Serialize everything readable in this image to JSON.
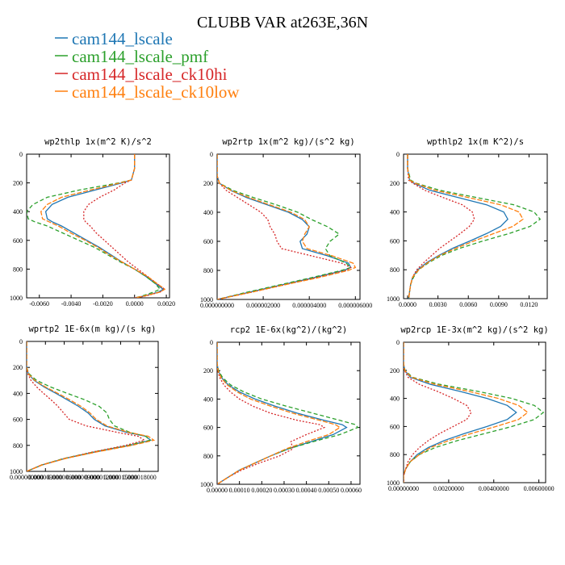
{
  "figure": {
    "title": "CLUBB VAR at263E,36N",
    "legend": [
      {
        "label": "cam144_lscale",
        "color": "#1f77b4"
      },
      {
        "label": "cam144_lscale_pmf",
        "color": "#2ca02c"
      },
      {
        "label": "cam144_lscale_ck10hi",
        "color": "#d62728"
      },
      {
        "label": "cam144_lscale_ck10low",
        "color": "#ff7f0e"
      }
    ]
  },
  "chart_data": [
    {
      "type": "line",
      "title": "wp2thlp  1x(m^2 K)/s^2",
      "xlim": [
        -0.0068,
        0.0022
      ],
      "ylim": [
        1000,
        0
      ],
      "xticks": [
        -0.006,
        -0.004,
        -0.002,
        0,
        0.002
      ],
      "xtick_labels": [
        "-0.0060",
        "-0.0040",
        "-0.0020",
        "0.0000",
        "0.0020"
      ],
      "yticks": [
        0,
        200,
        400,
        600,
        800,
        1000
      ],
      "ytick_labels": [
        "0",
        "200",
        "400",
        "600",
        "800",
        "1000"
      ],
      "y_levels": [
        0,
        100,
        180,
        200,
        250,
        300,
        350,
        400,
        450,
        470,
        500,
        550,
        600,
        650,
        700,
        750,
        800,
        850,
        900,
        940,
        960,
        990,
        1000
      ],
      "series": [
        {
          "label": "cam144_lscale",
          "color": "#1f77b4",
          "dash": "",
          "x": [
            0,
            0,
            -0.0002,
            -0.0008,
            -0.0025,
            -0.0042,
            -0.0052,
            -0.0056,
            -0.0055,
            -0.0052,
            -0.0046,
            -0.0038,
            -0.003,
            -0.0022,
            -0.0015,
            -0.0008,
            0,
            0.0007,
            0.0013,
            0.0018,
            0.0015,
            0.0005,
            0
          ]
        },
        {
          "label": "cam144_lscale_pmf",
          "color": "#2ca02c",
          "dash": "5,3",
          "x": [
            0,
            0,
            -0.0002,
            -0.001,
            -0.0035,
            -0.0055,
            -0.0064,
            -0.0068,
            -0.0067,
            -0.0063,
            -0.0055,
            -0.0045,
            -0.0035,
            -0.0025,
            -0.0017,
            -0.0009,
            0,
            0.0007,
            0.0013,
            0.0016,
            0.0012,
            0.0004,
            0
          ]
        },
        {
          "label": "cam144_lscale_ck10hi",
          "color": "#d62728",
          "dash": "2,2",
          "x": [
            0,
            0,
            -0.0002,
            -0.0006,
            -0.0013,
            -0.0022,
            -0.0029,
            -0.0032,
            -0.0032,
            -0.0031,
            -0.0028,
            -0.0024,
            -0.0019,
            -0.0014,
            -0.0009,
            -0.0004,
            0.0002,
            0.0008,
            0.0014,
            0.0019,
            0.0016,
            0.0006,
            0
          ]
        },
        {
          "label": "cam144_lscale_ck10low",
          "color": "#ff7f0e",
          "dash": "6,2",
          "x": [
            0,
            0,
            -0.0002,
            -0.0009,
            -0.0028,
            -0.0046,
            -0.0055,
            -0.0059,
            -0.0058,
            -0.0054,
            -0.0048,
            -0.004,
            -0.0031,
            -0.0023,
            -0.0016,
            -0.0008,
            0,
            0.0008,
            0.0014,
            0.0019,
            0.0016,
            0.0005,
            0
          ]
        }
      ]
    },
    {
      "type": "line",
      "title": "wp2rtp  1x(m^2 kg)/(s^2 kg)",
      "xlim": [
        0,
        6.2e-06
      ],
      "ylim": [
        1000,
        0
      ],
      "xticks": [
        0,
        2e-06,
        4e-06,
        6e-06
      ],
      "xtick_labels": [
        "0.000000000",
        "0.000002000",
        "0.000004000",
        "0.000006000"
      ],
      "yticks": [
        0,
        200,
        400,
        600,
        800,
        1000
      ],
      "ytick_labels": [
        "0",
        "200",
        "400",
        "600",
        "800",
        "1000"
      ],
      "y_levels": [
        0,
        150,
        200,
        250,
        300,
        350,
        400,
        450,
        500,
        550,
        600,
        650,
        700,
        750,
        780,
        800,
        850,
        900,
        950,
        1000
      ],
      "series": [
        {
          "label": "cam144_lscale",
          "color": "#1f77b4",
          "dash": "",
          "x": [
            0,
            0,
            1e-07,
            6e-07,
            1.3e-06,
            2.2e-06,
            3.1e-06,
            3.7e-06,
            4e-06,
            3.9e-06,
            3.6e-06,
            3.7e-06,
            4.8e-06,
            5.7e-06,
            5.8e-06,
            5.5e-06,
            4.2e-06,
            2.8e-06,
            1.4e-06,
            0
          ]
        },
        {
          "label": "cam144_lscale_pmf",
          "color": "#2ca02c",
          "dash": "5,3",
          "x": [
            0,
            0,
            1e-07,
            7e-07,
            1.6e-06,
            2.6e-06,
            3.5e-06,
            4.1e-06,
            4.8e-06,
            5.3e-06,
            4.9e-06,
            4.7e-06,
            4.9e-06,
            5.6e-06,
            5.8e-06,
            5.4e-06,
            4.1e-06,
            2.7e-06,
            1.3e-06,
            0
          ]
        },
        {
          "label": "cam144_lscale_ck10hi",
          "color": "#d62728",
          "dash": "2,2",
          "x": [
            0,
            0,
            1e-07,
            4e-07,
            9e-07,
            1.4e-06,
            1.9e-06,
            2.2e-06,
            2.3e-06,
            2.5e-06,
            2.6e-06,
            2.8e-06,
            4.1e-06,
            5.4e-06,
            5.8e-06,
            5.6e-06,
            4.3e-06,
            2.9e-06,
            1.5e-06,
            0
          ]
        },
        {
          "label": "cam144_lscale_ck10low",
          "color": "#ff7f0e",
          "dash": "6,2",
          "x": [
            0,
            0,
            1e-07,
            6e-07,
            1.4e-06,
            2.3e-06,
            3.2e-06,
            3.8e-06,
            4e-06,
            3.8e-06,
            3.7e-06,
            3.9e-06,
            5e-06,
            5.9e-06,
            6e-06,
            5.7e-06,
            4.4e-06,
            2.9e-06,
            1.5e-06,
            0
          ]
        }
      ]
    },
    {
      "type": "line",
      "title": "wpthlp2  1x(m K^2)/s",
      "xlim": [
        -0.0004,
        0.0138
      ],
      "ylim": [
        1000,
        0
      ],
      "xticks": [
        0,
        0.003,
        0.006,
        0.009,
        0.012
      ],
      "xtick_labels": [
        "0.0000",
        "0.0030",
        "0.0060",
        "0.0090",
        "0.0120"
      ],
      "yticks": [
        0,
        200,
        400,
        600,
        800,
        1000
      ],
      "ytick_labels": [
        "0",
        "200",
        "400",
        "600",
        "800",
        "1000"
      ],
      "y_levels": [
        0,
        100,
        180,
        200,
        250,
        300,
        350,
        400,
        450,
        500,
        550,
        600,
        650,
        700,
        750,
        800,
        850,
        900,
        950,
        1000
      ],
      "series": [
        {
          "label": "cam144_lscale",
          "color": "#1f77b4",
          "dash": "",
          "x": [
            0,
            0,
            0.0002,
            0.0006,
            0.0022,
            0.005,
            0.0078,
            0.0095,
            0.0099,
            0.0092,
            0.0078,
            0.0062,
            0.0045,
            0.0031,
            0.0019,
            0.001,
            0.0005,
            0.0003,
            0.0002,
            0.0001
          ]
        },
        {
          "label": "cam144_lscale_pmf",
          "color": "#2ca02c",
          "dash": "5,3",
          "x": [
            0,
            0,
            0.0003,
            0.0008,
            0.0032,
            0.0068,
            0.0105,
            0.0125,
            0.0131,
            0.0121,
            0.01,
            0.0075,
            0.0052,
            0.0034,
            0.0021,
            0.0011,
            0.0006,
            0.0003,
            0.0002,
            0.0001
          ]
        },
        {
          "label": "cam144_lscale_ck10hi",
          "color": "#d62728",
          "dash": "2,2",
          "x": [
            0,
            0,
            0.0001,
            0.0005,
            0.0017,
            0.0035,
            0.0054,
            0.0064,
            0.0066,
            0.0061,
            0.0052,
            0.0042,
            0.0032,
            0.0024,
            0.0016,
            0.0009,
            0.0005,
            0.0003,
            0.0002,
            0.0001
          ]
        },
        {
          "label": "cam144_lscale_ck10low",
          "color": "#ff7f0e",
          "dash": "6,2",
          "x": [
            0,
            0,
            0.0002,
            0.0007,
            0.0027,
            0.006,
            0.0092,
            0.011,
            0.0114,
            0.0104,
            0.0085,
            0.0066,
            0.0048,
            0.0032,
            0.002,
            0.0011,
            0.0005,
            0.0003,
            0.0002,
            0.0001
          ]
        }
      ]
    },
    {
      "type": "line",
      "title": "wprtp2  1E-6x(m kg)/(s kg)",
      "xlim": [
        0,
        2.1e-05
      ],
      "ylim": [
        1000,
        0
      ],
      "xticks": [
        0,
        3e-06,
        6e-06,
        9e-06,
        1.2e-05,
        1.5e-05,
        1.8e-05
      ],
      "xtick_labels": [
        "0.000000000",
        "0.000003000",
        "0.000006000",
        "0.000009000",
        "0.000012000",
        "0.000015000",
        "0.000018000"
      ],
      "yticks": [
        0,
        200,
        400,
        600,
        800,
        1000
      ],
      "ytick_labels": [
        "0",
        "200",
        "400",
        "600",
        "800",
        "1000"
      ],
      "y_levels": [
        0,
        200,
        250,
        300,
        350,
        400,
        450,
        500,
        550,
        600,
        650,
        700,
        730,
        760,
        800,
        850,
        900,
        950,
        1000
      ],
      "series": [
        {
          "label": "cam144_lscale",
          "color": "#1f77b4",
          "dash": "",
          "x": [
            0,
            0,
            3e-07,
            1.2e-06,
            2.8e-06,
            4.7e-06,
            6.5e-06,
            8.3e-06,
            9.8e-06,
            1.08e-05,
            1.25e-05,
            1.6e-05,
            1.9e-05,
            1.98e-05,
            1.65e-05,
            1.1e-05,
            6.2e-06,
            2.5e-06,
            0
          ]
        },
        {
          "label": "cam144_lscale_pmf",
          "color": "#2ca02c",
          "dash": "5,3",
          "x": [
            0,
            0,
            4e-07,
            1.6e-06,
            3.8e-06,
            6.5e-06,
            9.3e-06,
            1.16e-05,
            1.28e-05,
            1.32e-05,
            1.4e-05,
            1.65e-05,
            1.9e-05,
            1.97e-05,
            1.62e-05,
            1.07e-05,
            6e-06,
            2.4e-06,
            0
          ]
        },
        {
          "label": "cam144_lscale_ck10hi",
          "color": "#d62728",
          "dash": "2,2",
          "x": [
            0,
            0,
            2e-07,
            7e-07,
            1.6e-06,
            2.7e-06,
            3.9e-06,
            5e-06,
            5.9e-06,
            6.8e-06,
            9.5e-06,
            1.45e-05,
            1.78e-05,
            1.88e-05,
            1.58e-05,
            1.06e-05,
            6.1e-06,
            2.4e-06,
            0
          ]
        },
        {
          "label": "cam144_lscale_ck10low",
          "color": "#ff7f0e",
          "dash": "6,2",
          "x": [
            0,
            0,
            3e-07,
            1.3e-06,
            3e-06,
            5e-06,
            6.9e-06,
            8.7e-06,
            1.01e-05,
            1.11e-05,
            1.28e-05,
            1.63e-05,
            1.94e-05,
            2.03e-05,
            1.68e-05,
            1.12e-05,
            6.3e-06,
            2.5e-06,
            0
          ]
        }
      ]
    },
    {
      "type": "line",
      "title": "rcp2  1E-6x(kg^2)/(kg^2)",
      "xlim": [
        0,
        0.00064
      ],
      "ylim": [
        1000,
        0
      ],
      "xticks": [
        0,
        0.0001,
        0.0002,
        0.0003,
        0.0004,
        0.0005,
        0.0006
      ],
      "xtick_labels": [
        "0.00000",
        "0.00010",
        "0.00020",
        "0.00030",
        "0.00040",
        "0.00050",
        "0.00060"
      ],
      "yticks": [
        0,
        200,
        400,
        600,
        800,
        1000
      ],
      "ytick_labels": [
        "0",
        "200",
        "400",
        "600",
        "800",
        "1000"
      ],
      "y_levels": [
        0,
        150,
        200,
        250,
        300,
        350,
        400,
        450,
        500,
        550,
        580,
        600,
        650,
        700,
        750,
        800,
        850,
        900,
        950,
        1000
      ],
      "series": [
        {
          "label": "cam144_lscale",
          "color": "#1f77b4",
          "dash": "",
          "x": [
            0,
            0,
            5e-06,
            2e-05,
            5e-05,
            0.0001,
            0.00017,
            0.00026,
            0.00036,
            0.00048,
            0.00056,
            0.00058,
            0.00052,
            0.00042,
            0.00032,
            0.00024,
            0.00017,
            0.0001,
            5e-05,
            0
          ]
        },
        {
          "label": "cam144_lscale_pmf",
          "color": "#2ca02c",
          "dash": "5,3",
          "x": [
            0,
            0,
            6e-06,
            2.5e-05,
            6e-05,
            0.00012,
            0.0002,
            0.00031,
            0.00043,
            0.00055,
            0.00062,
            0.00063,
            0.00055,
            0.00043,
            0.00032,
            0.00024,
            0.00017,
            0.0001,
            5e-05,
            0
          ]
        },
        {
          "label": "cam144_lscale_ck10hi",
          "color": "#d62728",
          "dash": "2,2",
          "x": [
            0,
            0,
            3e-06,
            1.2e-05,
            3e-05,
            6e-05,
            0.0001,
            0.00016,
            0.00024,
            0.00036,
            0.00046,
            0.00048,
            0.0004,
            0.00033,
            0.00034,
            0.00028,
            0.00019,
            0.00011,
            5e-05,
            0
          ]
        },
        {
          "label": "cam144_lscale_ck10low",
          "color": "#ff7f0e",
          "dash": "6,2",
          "x": [
            0,
            0,
            4e-06,
            1.8e-05,
            4.5e-05,
            9e-05,
            0.00015,
            0.00024,
            0.00034,
            0.00046,
            0.00053,
            0.00055,
            0.0005,
            0.0004,
            0.00031,
            0.00024,
            0.00017,
            0.0001,
            5e-05,
            0
          ]
        }
      ]
    },
    {
      "type": "line",
      "title": "wp2rcp  1E-3x(m^2 kg)/(s^2 kg)",
      "xlim": [
        0,
        0.0063
      ],
      "ylim": [
        1000,
        0
      ],
      "xticks": [
        0,
        0.002,
        0.004,
        0.006
      ],
      "xtick_labels": [
        "0.00000000",
        "0.00200000",
        "0.00400000",
        "0.00600000"
      ],
      "yticks": [
        0,
        200,
        400,
        600,
        800,
        1000
      ],
      "ytick_labels": [
        "0",
        "200",
        "400",
        "600",
        "800",
        "1000"
      ],
      "y_levels": [
        0,
        150,
        200,
        250,
        300,
        350,
        400,
        450,
        500,
        550,
        600,
        650,
        700,
        750,
        800,
        850,
        900,
        950,
        1000
      ],
      "series": [
        {
          "label": "cam144_lscale",
          "color": "#1f77b4",
          "dash": "",
          "x": [
            0,
            0,
            5e-05,
            0.0003,
            0.0012,
            0.0025,
            0.0037,
            0.0046,
            0.005,
            0.0046,
            0.0037,
            0.0027,
            0.0018,
            0.0011,
            0.0006,
            0.0003,
            0.0001,
            0,
            0
          ]
        },
        {
          "label": "cam144_lscale_pmf",
          "color": "#2ca02c",
          "dash": "5,3",
          "x": [
            0,
            0,
            6e-05,
            0.0004,
            0.0016,
            0.0033,
            0.0048,
            0.0058,
            0.0062,
            0.0058,
            0.0048,
            0.0036,
            0.0024,
            0.0014,
            0.0007,
            0.0003,
            0.0001,
            0,
            0
          ]
        },
        {
          "label": "cam144_lscale_ck10hi",
          "color": "#d62728",
          "dash": "2,2",
          "x": [
            0,
            0,
            4e-05,
            0.0002,
            0.0007,
            0.0015,
            0.0022,
            0.0028,
            0.003,
            0.0028,
            0.0022,
            0.0016,
            0.0011,
            0.0007,
            0.0004,
            0.0002,
            0.0001,
            0,
            0
          ]
        },
        {
          "label": "cam144_lscale_ck10low",
          "color": "#ff7f0e",
          "dash": "6,2",
          "x": [
            0,
            0,
            5e-05,
            0.00035,
            0.0014,
            0.0029,
            0.0042,
            0.0051,
            0.0055,
            0.0051,
            0.0041,
            0.003,
            0.002,
            0.0012,
            0.0007,
            0.0003,
            0.0001,
            0,
            0
          ]
        }
      ]
    }
  ]
}
